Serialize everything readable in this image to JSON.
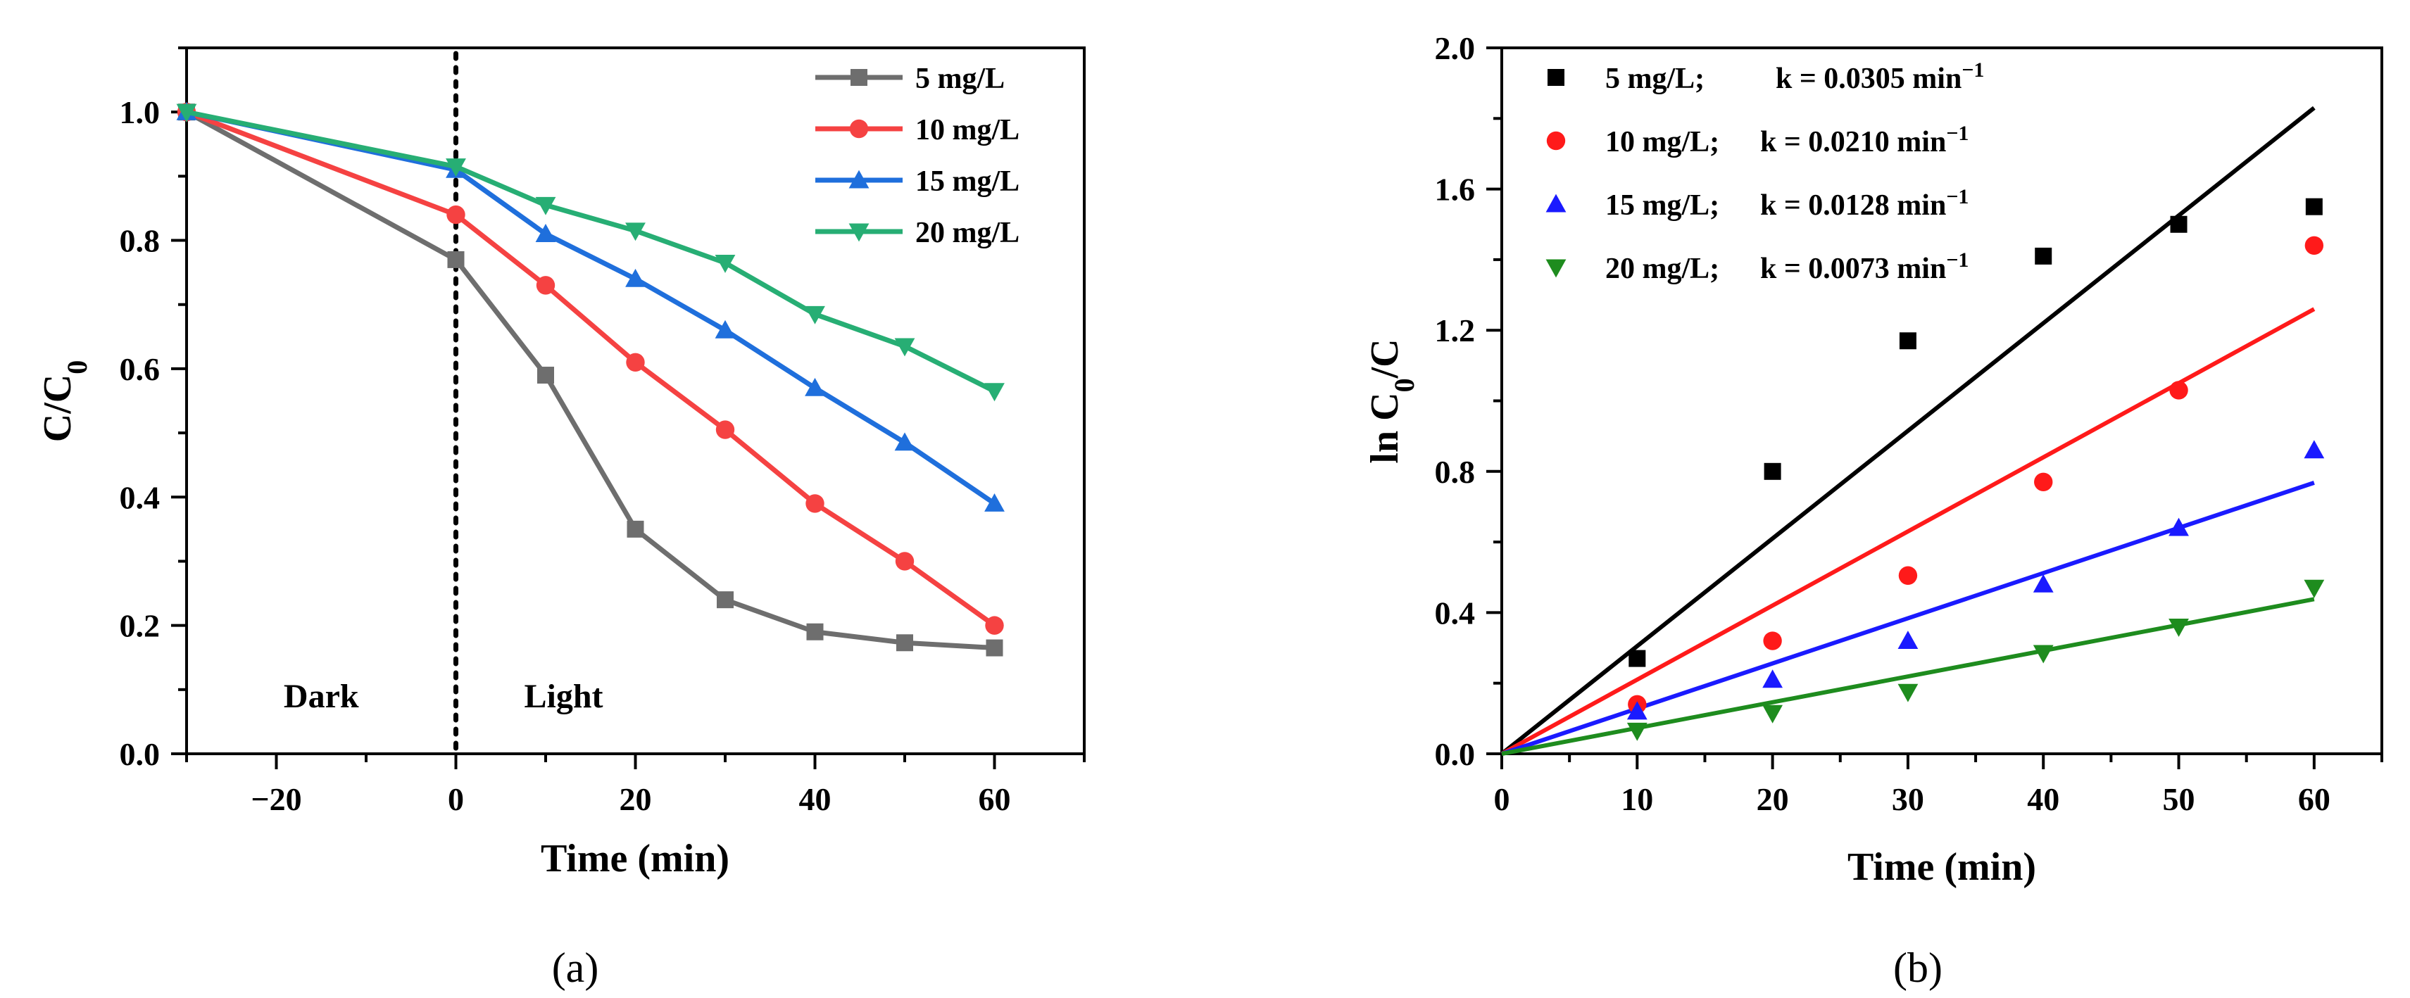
{
  "chart_data": [
    {
      "id": "a",
      "type": "line",
      "caption": "(a)",
      "xlabel": "Time (min)",
      "ylabel": "C/C",
      "ylabel_sub": "0",
      "xlim": [
        -30,
        70
      ],
      "ylim": [
        0,
        1.1
      ],
      "xticks": [
        -20,
        0,
        20,
        40,
        60
      ],
      "xtick_labels": [
        "−20",
        "0",
        "20",
        "40",
        "60"
      ],
      "yticks": [
        0,
        0.2,
        0.4,
        0.6,
        0.8,
        1.0
      ],
      "ytick_labels": [
        "0.0",
        "0.2",
        "0.4",
        "0.6",
        "0.8",
        "1.0"
      ],
      "legend_position": "top-right",
      "vline": {
        "x": 0,
        "style": "dotted"
      },
      "annotations": [
        {
          "text": "Dark",
          "x": -15,
          "y": 0.09
        },
        {
          "text": "Light",
          "x": 12,
          "y": 0.09
        }
      ],
      "x": [
        -30,
        0,
        10,
        20,
        30,
        40,
        50,
        60
      ],
      "series": [
        {
          "name": "5 mg/L",
          "color": "#6e6e6e",
          "marker": "square",
          "values": [
            1.0,
            0.77,
            0.59,
            0.35,
            0.24,
            0.19,
            0.173,
            0.165
          ]
        },
        {
          "name": "10 mg/L",
          "color": "#f54242",
          "marker": "circle",
          "values": [
            1.0,
            0.84,
            0.73,
            0.61,
            0.505,
            0.39,
            0.3,
            0.2
          ]
        },
        {
          "name": "15 mg/L",
          "color": "#1f6fdc",
          "marker": "triangle-up",
          "values": [
            1.0,
            0.91,
            0.81,
            0.74,
            0.66,
            0.57,
            0.485,
            0.39
          ]
        },
        {
          "name": "20 mg/L",
          "color": "#27ae74",
          "marker": "triangle-down",
          "values": [
            1.0,
            0.915,
            0.855,
            0.815,
            0.765,
            0.685,
            0.635,
            0.565
          ]
        }
      ]
    },
    {
      "id": "b",
      "type": "scatter",
      "caption": "(b)",
      "xlabel": "Time (min)",
      "ylabel": "ln C",
      "ylabel_sub": "0",
      "ylabel_tail": "/C",
      "xlim": [
        0,
        65
      ],
      "ylim": [
        0,
        2.0
      ],
      "xticks": [
        0,
        10,
        20,
        30,
        40,
        50,
        60
      ],
      "xtick_labels": [
        "0",
        "10",
        "20",
        "30",
        "40",
        "50",
        "60"
      ],
      "yticks": [
        0,
        0.4,
        0.8,
        1.2,
        1.6,
        2.0
      ],
      "ytick_labels": [
        "0.0",
        "0.4",
        "0.8",
        "1.2",
        "1.6",
        "2.0"
      ],
      "legend_position": "top-left",
      "x": [
        10,
        20,
        30,
        40,
        50,
        60
      ],
      "series": [
        {
          "name": "5 mg/L;",
          "k_text": "k = 0.0305 min",
          "k_exp": "−1",
          "k": 0.0305,
          "color": "#000000",
          "marker": "square",
          "values": [
            0.27,
            0.8,
            1.17,
            1.41,
            1.5,
            1.55
          ]
        },
        {
          "name": "10 mg/L;",
          "k_text": "k = 0.0210 min",
          "k_exp": "−1",
          "k": 0.021,
          "color": "#ff1a1a",
          "marker": "circle",
          "values": [
            0.14,
            0.32,
            0.505,
            0.77,
            1.03,
            1.44
          ]
        },
        {
          "name": "15 mg/L;",
          "k_text": "k = 0.0128 min",
          "k_exp": "−1",
          "k": 0.0128,
          "color": "#1a1aff",
          "marker": "triangle-up",
          "values": [
            0.12,
            0.21,
            0.32,
            0.48,
            0.64,
            0.86
          ]
        },
        {
          "name": "20 mg/L;",
          "k_text": "k = 0.0073 min",
          "k_exp": "−1",
          "k": 0.0073,
          "color": "#1e8c1e",
          "marker": "triangle-down",
          "values": [
            0.065,
            0.115,
            0.175,
            0.285,
            0.36,
            0.47
          ]
        }
      ]
    }
  ]
}
